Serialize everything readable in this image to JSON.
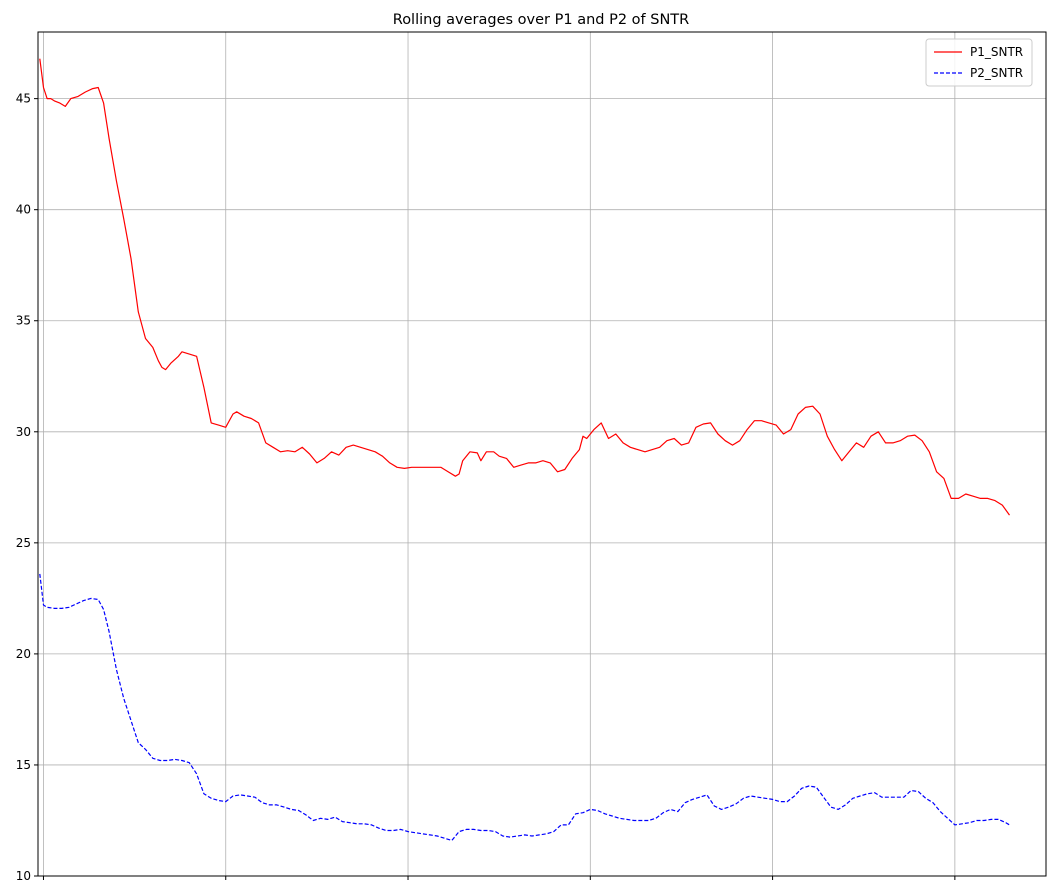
{
  "chart_data": {
    "type": "line",
    "title": "Rolling averages over P1 and P2 of SNTR",
    "xlabel": "",
    "ylabel": "",
    "ylim": [
      10,
      48
    ],
    "xlim": [
      -3,
      550
    ],
    "yticks": [
      10,
      15,
      20,
      25,
      30,
      35,
      40,
      45
    ],
    "xticks": [
      0,
      100,
      200,
      300,
      400,
      500
    ],
    "grid": true,
    "legend_position": "top-right",
    "series": [
      {
        "name": "P1_SNTR",
        "color": "#ff0000",
        "dash": "solid",
        "points": [
          [
            -2,
            46.8
          ],
          [
            0,
            45.5
          ],
          [
            2,
            45
          ],
          [
            4,
            45
          ],
          [
            6,
            44.9
          ],
          [
            9,
            44.8
          ],
          [
            12,
            44.65
          ],
          [
            15,
            45
          ],
          [
            19,
            45.1
          ],
          [
            23,
            45.3
          ],
          [
            27,
            45.45
          ],
          [
            30,
            45.5
          ],
          [
            33,
            44.8
          ],
          [
            36,
            43.2
          ],
          [
            40,
            41.3
          ],
          [
            44,
            39.6
          ],
          [
            48,
            37.8
          ],
          [
            52,
            35.4
          ],
          [
            56,
            34.2
          ],
          [
            60,
            33.8
          ],
          [
            63,
            33.2
          ],
          [
            65,
            32.9
          ],
          [
            67,
            32.8
          ],
          [
            70,
            33.1
          ],
          [
            74,
            33.4
          ],
          [
            76,
            33.6
          ],
          [
            80,
            33.5
          ],
          [
            84,
            33.4
          ],
          [
            88,
            32
          ],
          [
            92,
            30.4
          ],
          [
            96,
            30.3
          ],
          [
            100,
            30.2
          ],
          [
            104,
            30.8
          ],
          [
            106,
            30.9
          ],
          [
            110,
            30.7
          ],
          [
            114,
            30.6
          ],
          [
            118,
            30.4
          ],
          [
            122,
            29.5
          ],
          [
            126,
            29.3
          ],
          [
            130,
            29.1
          ],
          [
            134,
            29.15
          ],
          [
            138,
            29.1
          ],
          [
            142,
            29.3
          ],
          [
            146,
            29
          ],
          [
            150,
            28.6
          ],
          [
            154,
            28.8
          ],
          [
            158,
            29.1
          ],
          [
            162,
            28.95
          ],
          [
            166,
            29.3
          ],
          [
            170,
            29.4
          ],
          [
            174,
            29.3
          ],
          [
            178,
            29.2
          ],
          [
            182,
            29.1
          ],
          [
            186,
            28.9
          ],
          [
            190,
            28.6
          ],
          [
            194,
            28.4
          ],
          [
            198,
            28.35
          ],
          [
            202,
            28.4
          ],
          [
            206,
            28.4
          ],
          [
            210,
            28.4
          ],
          [
            214,
            28.4
          ],
          [
            218,
            28.4
          ],
          [
            222,
            28.2
          ],
          [
            226,
            28.0
          ],
          [
            228,
            28.1
          ],
          [
            230,
            28.7
          ],
          [
            234,
            29.1
          ],
          [
            238,
            29.05
          ],
          [
            240,
            28.7
          ],
          [
            243,
            29.1
          ],
          [
            247,
            29.1
          ],
          [
            250,
            28.9
          ],
          [
            254,
            28.8
          ],
          [
            258,
            28.4
          ],
          [
            262,
            28.5
          ],
          [
            266,
            28.6
          ],
          [
            270,
            28.6
          ],
          [
            274,
            28.7
          ],
          [
            278,
            28.6
          ],
          [
            282,
            28.2
          ],
          [
            286,
            28.3
          ],
          [
            290,
            28.8
          ],
          [
            294,
            29.2
          ],
          [
            296,
            29.8
          ],
          [
            298,
            29.7
          ],
          [
            302,
            30.1
          ],
          [
            306,
            30.4
          ],
          [
            310,
            29.7
          ],
          [
            314,
            29.9
          ],
          [
            318,
            29.5
          ],
          [
            322,
            29.3
          ],
          [
            326,
            29.2
          ],
          [
            330,
            29.1
          ],
          [
            334,
            29.2
          ],
          [
            338,
            29.3
          ],
          [
            342,
            29.6
          ],
          [
            346,
            29.7
          ],
          [
            350,
            29.4
          ],
          [
            354,
            29.5
          ],
          [
            358,
            30.2
          ],
          [
            362,
            30.35
          ],
          [
            366,
            30.4
          ],
          [
            370,
            29.9
          ],
          [
            374,
            29.6
          ],
          [
            378,
            29.4
          ],
          [
            382,
            29.6
          ],
          [
            386,
            30.1
          ],
          [
            390,
            30.5
          ],
          [
            394,
            30.5
          ],
          [
            398,
            30.4
          ],
          [
            402,
            30.3
          ],
          [
            406,
            29.9
          ],
          [
            410,
            30.1
          ],
          [
            414,
            30.8
          ],
          [
            418,
            31.1
          ],
          [
            422,
            31.15
          ],
          [
            426,
            30.8
          ],
          [
            430,
            29.8
          ],
          [
            434,
            29.2
          ],
          [
            438,
            28.7
          ],
          [
            442,
            29.1
          ],
          [
            446,
            29.5
          ],
          [
            450,
            29.3
          ],
          [
            454,
            29.8
          ],
          [
            458,
            30
          ],
          [
            462,
            29.5
          ],
          [
            466,
            29.5
          ],
          [
            470,
            29.6
          ],
          [
            474,
            29.8
          ],
          [
            478,
            29.85
          ],
          [
            482,
            29.6
          ],
          [
            486,
            29.1
          ],
          [
            490,
            28.2
          ],
          [
            494,
            27.9
          ],
          [
            498,
            27.0
          ],
          [
            502,
            27.0
          ],
          [
            506,
            27.2
          ],
          [
            510,
            27.1
          ],
          [
            514,
            27.0
          ],
          [
            518,
            27.0
          ],
          [
            522,
            26.9
          ],
          [
            526,
            26.7
          ],
          [
            530,
            26.25
          ]
        ]
      },
      {
        "name": "P2_SNTR",
        "color": "#0000ff",
        "dash": "dashed",
        "points": [
          [
            -2,
            23.6
          ],
          [
            0,
            22.2
          ],
          [
            2,
            22.1
          ],
          [
            6,
            22.05
          ],
          [
            10,
            22.05
          ],
          [
            14,
            22.1
          ],
          [
            18,
            22.25
          ],
          [
            22,
            22.4
          ],
          [
            26,
            22.5
          ],
          [
            30,
            22.45
          ],
          [
            33,
            22.0
          ],
          [
            36,
            21.0
          ],
          [
            40,
            19.3
          ],
          [
            44,
            18.0
          ],
          [
            48,
            17.0
          ],
          [
            52,
            16.0
          ],
          [
            56,
            15.7
          ],
          [
            60,
            15.3
          ],
          [
            64,
            15.2
          ],
          [
            68,
            15.2
          ],
          [
            72,
            15.25
          ],
          [
            76,
            15.2
          ],
          [
            80,
            15.1
          ],
          [
            84,
            14.6
          ],
          [
            88,
            13.7
          ],
          [
            92,
            13.5
          ],
          [
            96,
            13.4
          ],
          [
            100,
            13.35
          ],
          [
            104,
            13.6
          ],
          [
            108,
            13.65
          ],
          [
            112,
            13.6
          ],
          [
            116,
            13.55
          ],
          [
            120,
            13.3
          ],
          [
            124,
            13.2
          ],
          [
            128,
            13.2
          ],
          [
            132,
            13.1
          ],
          [
            136,
            13.0
          ],
          [
            140,
            12.95
          ],
          [
            144,
            12.75
          ],
          [
            148,
            12.5
          ],
          [
            152,
            12.6
          ],
          [
            156,
            12.55
          ],
          [
            160,
            12.65
          ],
          [
            164,
            12.45
          ],
          [
            168,
            12.4
          ],
          [
            172,
            12.35
          ],
          [
            176,
            12.35
          ],
          [
            180,
            12.3
          ],
          [
            184,
            12.15
          ],
          [
            188,
            12.05
          ],
          [
            192,
            12.05
          ],
          [
            196,
            12.1
          ],
          [
            200,
            12.0
          ],
          [
            204,
            11.95
          ],
          [
            208,
            11.9
          ],
          [
            212,
            11.85
          ],
          [
            216,
            11.8
          ],
          [
            220,
            11.7
          ],
          [
            224,
            11.6
          ],
          [
            228,
            12.0
          ],
          [
            232,
            12.1
          ],
          [
            236,
            12.1
          ],
          [
            240,
            12.05
          ],
          [
            244,
            12.05
          ],
          [
            248,
            12.0
          ],
          [
            252,
            11.8
          ],
          [
            256,
            11.75
          ],
          [
            260,
            11.8
          ],
          [
            264,
            11.85
          ],
          [
            268,
            11.8
          ],
          [
            272,
            11.85
          ],
          [
            276,
            11.9
          ],
          [
            280,
            12.0
          ],
          [
            284,
            12.3
          ],
          [
            288,
            12.3
          ],
          [
            292,
            12.8
          ],
          [
            296,
            12.85
          ],
          [
            300,
            13.0
          ],
          [
            304,
            12.95
          ],
          [
            308,
            12.8
          ],
          [
            312,
            12.7
          ],
          [
            316,
            12.6
          ],
          [
            320,
            12.55
          ],
          [
            324,
            12.5
          ],
          [
            328,
            12.5
          ],
          [
            332,
            12.5
          ],
          [
            336,
            12.6
          ],
          [
            340,
            12.85
          ],
          [
            344,
            13.0
          ],
          [
            348,
            12.9
          ],
          [
            352,
            13.3
          ],
          [
            356,
            13.45
          ],
          [
            360,
            13.55
          ],
          [
            364,
            13.65
          ],
          [
            368,
            13.15
          ],
          [
            372,
            13.0
          ],
          [
            376,
            13.1
          ],
          [
            380,
            13.25
          ],
          [
            384,
            13.5
          ],
          [
            388,
            13.6
          ],
          [
            392,
            13.55
          ],
          [
            396,
            13.5
          ],
          [
            400,
            13.45
          ],
          [
            404,
            13.35
          ],
          [
            408,
            13.35
          ],
          [
            412,
            13.6
          ],
          [
            416,
            13.95
          ],
          [
            420,
            14.05
          ],
          [
            424,
            14.0
          ],
          [
            428,
            13.55
          ],
          [
            432,
            13.1
          ],
          [
            436,
            13.0
          ],
          [
            440,
            13.2
          ],
          [
            444,
            13.5
          ],
          [
            448,
            13.6
          ],
          [
            452,
            13.7
          ],
          [
            456,
            13.75
          ],
          [
            460,
            13.55
          ],
          [
            464,
            13.55
          ],
          [
            468,
            13.55
          ],
          [
            472,
            13.55
          ],
          [
            476,
            13.85
          ],
          [
            480,
            13.8
          ],
          [
            484,
            13.5
          ],
          [
            488,
            13.3
          ],
          [
            492,
            12.9
          ],
          [
            496,
            12.6
          ],
          [
            500,
            12.3
          ],
          [
            504,
            12.35
          ],
          [
            508,
            12.4
          ],
          [
            512,
            12.5
          ],
          [
            516,
            12.5
          ],
          [
            520,
            12.55
          ],
          [
            524,
            12.55
          ],
          [
            528,
            12.4
          ],
          [
            530,
            12.3
          ]
        ]
      }
    ]
  }
}
